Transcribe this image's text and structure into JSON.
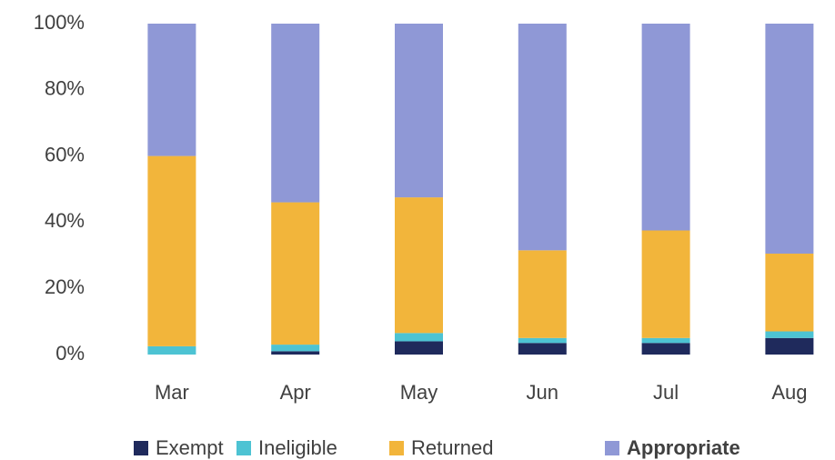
{
  "chart_data": {
    "type": "stacked_bar",
    "categories": [
      "Mar",
      "Apr",
      "May",
      "Jun",
      "Jul",
      "Aug"
    ],
    "series": [
      {
        "name": "Exempt",
        "color": "#1f2a5c",
        "values": [
          0,
          1,
          4,
          3.5,
          3.5,
          5
        ]
      },
      {
        "name": "Ineligible",
        "color": "#4dc3d3",
        "values": [
          2.5,
          2,
          2.5,
          1.5,
          1.5,
          2
        ]
      },
      {
        "name": "Returned",
        "color": "#f2b53b",
        "values": [
          57.5,
          43,
          41,
          26.5,
          32.5,
          23.5
        ]
      },
      {
        "name": "Appropriate",
        "color": "#8f98d6",
        "values": [
          40,
          54,
          52.5,
          68.5,
          62.5,
          69.5
        ]
      }
    ],
    "ylim": [
      0,
      100
    ],
    "yticks": [
      {
        "value": 0,
        "label": "0%"
      },
      {
        "value": 20,
        "label": "20%"
      },
      {
        "value": 40,
        "label": "40%"
      },
      {
        "value": 60,
        "label": "60%"
      },
      {
        "value": 80,
        "label": "80%"
      },
      {
        "value": 100,
        "label": "100%"
      }
    ],
    "grid": false,
    "legend": "bottom"
  }
}
